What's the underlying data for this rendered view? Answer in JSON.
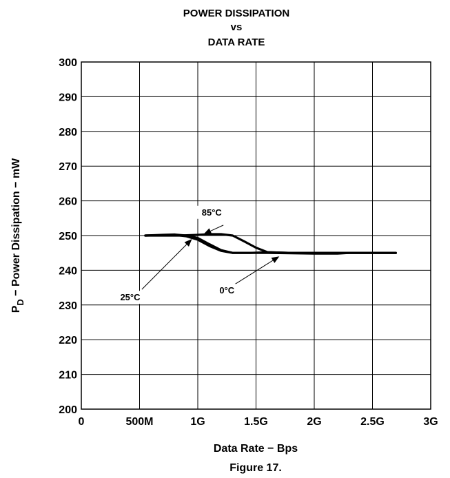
{
  "chart_data": {
    "type": "line",
    "title": [
      "POWER DISSIPATION",
      "vs",
      "DATA RATE"
    ],
    "xlabel": "Data Rate − Bps",
    "ylabel_main": "P",
    "ylabel_sub": "D",
    "ylabel_rest": " − Power Dissipation − mW",
    "caption": "Figure 17.",
    "xlim": [
      0,
      3
    ],
    "ylim": [
      200,
      300
    ],
    "x_unit": "Gbps",
    "x_ticks": [
      0,
      0.5,
      1,
      1.5,
      2,
      2.5,
      3
    ],
    "x_tick_labels": [
      "0",
      "500M",
      "1G",
      "1.5G",
      "2G",
      "2.5G",
      "3G"
    ],
    "y_ticks": [
      200,
      210,
      220,
      230,
      240,
      250,
      260,
      270,
      280,
      290,
      300
    ],
    "y_tick_labels": [
      "200",
      "210",
      "220",
      "230",
      "240",
      "250",
      "260",
      "270",
      "280",
      "290",
      "300"
    ],
    "grid": true,
    "series": [
      {
        "name": "85°C",
        "x": [
          0.55,
          0.7,
          0.85,
          1.0,
          1.1,
          1.2,
          1.3,
          1.4,
          1.5,
          1.6,
          1.8,
          2.0,
          2.3,
          2.5,
          2.7
        ],
        "y": [
          250,
          250,
          250,
          250.2,
          250.4,
          250.4,
          250,
          248.3,
          246.5,
          245.2,
          245,
          245,
          245,
          245,
          245
        ]
      },
      {
        "name": "25°C",
        "x": [
          0.55,
          0.7,
          0.8,
          0.9,
          1.0,
          1.1,
          1.2,
          1.3,
          1.45,
          1.6,
          1.8,
          2.0,
          2.3,
          2.5,
          2.7
        ],
        "y": [
          250,
          250.1,
          250.2,
          249.8,
          248.8,
          247,
          245.6,
          245,
          245,
          245.2,
          245,
          245,
          245,
          245,
          245
        ]
      },
      {
        "name": "0°C",
        "x": [
          0.55,
          0.7,
          0.8,
          0.9,
          1.0,
          1.1,
          1.2,
          1.3,
          1.45,
          1.6,
          1.8,
          2.0,
          2.2,
          2.3,
          2.5,
          2.7
        ],
        "y": [
          250,
          250.2,
          250.3,
          250,
          249.3,
          247.5,
          245.8,
          245,
          245,
          245,
          244.9,
          244.8,
          244.8,
          245,
          245,
          245
        ]
      }
    ],
    "annotations": [
      {
        "text": "85°C",
        "label_x": 1.12,
        "label_y": 256,
        "arrow_from_x": 1.22,
        "arrow_from_y": 253,
        "arrow_to_x": 1.05,
        "arrow_to_y": 250.4
      },
      {
        "text": "25°C",
        "label_x": 0.42,
        "label_y": 231.5,
        "arrow_from_x": 0.52,
        "arrow_from_y": 234.5,
        "arrow_to_x": 0.95,
        "arrow_to_y": 249
      },
      {
        "text": "0°C",
        "label_x": 1.25,
        "label_y": 233.5,
        "arrow_from_x": 1.32,
        "arrow_from_y": 236,
        "arrow_to_x": 1.7,
        "arrow_to_y": 244
      }
    ]
  }
}
